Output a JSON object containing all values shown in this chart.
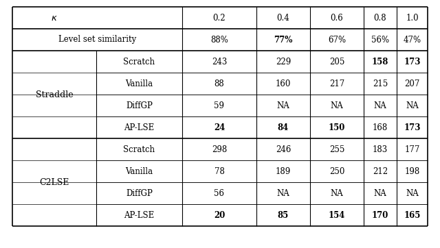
{
  "kappa_values": [
    "0.2",
    "0.4",
    "0.6",
    "0.8",
    "1.0"
  ],
  "level_set_similarity": [
    "88%",
    "77%",
    "67%",
    "56%",
    "47%"
  ],
  "straddle_data": {
    "Scratch": [
      "243",
      "229",
      "205",
      "158",
      "173"
    ],
    "Vanilla": [
      "88",
      "160",
      "217",
      "215",
      "207"
    ],
    "DiffGP": [
      "59",
      "NA",
      "NA",
      "NA",
      "NA"
    ],
    "AP-LSE": [
      "24",
      "84",
      "150",
      "168",
      "173"
    ]
  },
  "c2lse_data": {
    "Scratch": [
      "298",
      "246",
      "255",
      "183",
      "177"
    ],
    "Vanilla": [
      "78",
      "189",
      "250",
      "212",
      "198"
    ],
    "DiffGP": [
      "56",
      "NA",
      "NA",
      "NA",
      "NA"
    ],
    "AP-LSE": [
      "20",
      "85",
      "154",
      "170",
      "165"
    ]
  },
  "straddle_bold": {
    "Scratch": [
      false,
      false,
      false,
      true,
      true
    ],
    "Vanilla": [
      false,
      false,
      false,
      false,
      false
    ],
    "DiffGP": [
      false,
      false,
      false,
      false,
      false
    ],
    "AP-LSE": [
      true,
      true,
      true,
      false,
      true
    ]
  },
  "c2lse_bold": {
    "Scratch": [
      false,
      false,
      false,
      false,
      false
    ],
    "Vanilla": [
      false,
      false,
      false,
      false,
      false
    ],
    "DiffGP": [
      false,
      false,
      false,
      false,
      false
    ],
    "AP-LSE": [
      true,
      true,
      true,
      true,
      true
    ]
  },
  "lss_bold": [
    false,
    true,
    false,
    false,
    false
  ],
  "bg_color": "#ffffff",
  "line_color": "#000000",
  "font_size": 8.5,
  "font_family": "serif"
}
